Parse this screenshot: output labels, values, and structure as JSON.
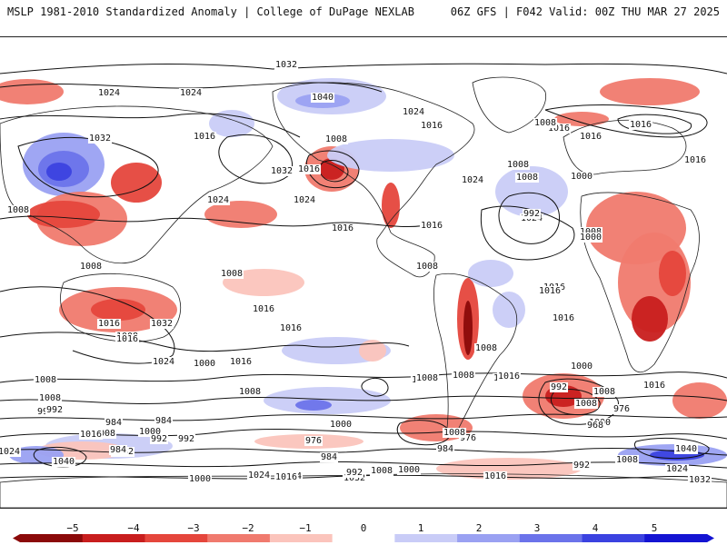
{
  "header": {
    "left": "MSLP 1981-2010 Standardized Anomaly | College of DuPage NEXLAB",
    "right": "06Z GFS | F042 Valid: 00Z THU MAR 27 2025"
  },
  "colors": {
    "neg5": "#8b0a0a",
    "neg4": "#c81e1e",
    "neg3": "#e5463c",
    "neg2": "#f07a6e",
    "neg1": "#fbc4bc",
    "zero": "#ffffff",
    "pos1": "#c9ccf7",
    "pos2": "#9aa1f2",
    "pos3": "#6b73ea",
    "pos4": "#3b42e0",
    "pos5": "#1414d2",
    "contour": "#111111",
    "land": "#222222"
  },
  "colorbar": {
    "ticks": [
      "−5",
      "−4",
      "−3",
      "−2",
      "−1",
      "0",
      "1",
      "2",
      "3",
      "4",
      "5"
    ]
  },
  "isobars": [
    "1032",
    "1024",
    "1040",
    "1024",
    "1016",
    "1032",
    "1024",
    "1008",
    "1016",
    "1032",
    "1016",
    "1024",
    "1008",
    "1016",
    "1024",
    "1008",
    "1016",
    "1032",
    "1008",
    "1008",
    "1016",
    "1008",
    "1024",
    "1016",
    "1016",
    "1024",
    "1016",
    "1008",
    "1016",
    "1008",
    "1000",
    "1016",
    "1016",
    "1000",
    "992",
    "1016",
    "1024",
    "1008",
    "1016",
    "1008",
    "1008",
    "1016",
    "1008",
    "1016",
    "1024",
    "1008",
    "1016",
    "1016",
    "1008",
    "1008",
    "1016",
    "1016",
    "1000",
    "1008",
    "1000",
    "992",
    "1008",
    "992",
    "976",
    "968",
    "984",
    "984",
    "1000",
    "992",
    "1008",
    "1016",
    "1032",
    "1040",
    "1024",
    "1000",
    "992",
    "1000",
    "1008",
    "976",
    "984",
    "984",
    "976",
    "992",
    "1008",
    "1024",
    "1032",
    "1000",
    "1008",
    "1000",
    "992",
    "1016",
    "1040",
    "1024",
    "1032",
    "984",
    "1024",
    "1016",
    "992",
    "1008"
  ]
}
